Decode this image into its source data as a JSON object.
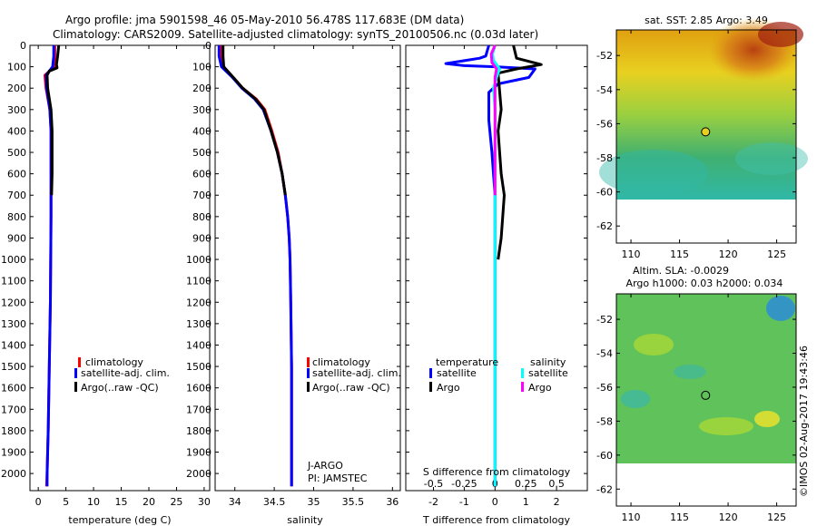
{
  "title": {
    "line1": "Argo profile: jma 5901598_46 05-May-2010 56.478S 117.683E (DM data)",
    "line2": "Climatology: CARS2009. Satellite-adjusted climatology: synTS_20100506.nc (0.03d later)"
  },
  "chart_data": [
    {
      "type": "line",
      "id": "temperature",
      "xlabel": "temperature (deg C)",
      "xlim": [
        -1.5,
        31
      ],
      "xticks": [
        0,
        5,
        10,
        15,
        20,
        25,
        30
      ],
      "ylim": [
        0,
        2080
      ],
      "yticks": [
        0,
        100,
        200,
        300,
        400,
        500,
        600,
        700,
        800,
        900,
        1000,
        1100,
        1200,
        1300,
        1400,
        1500,
        1600,
        1700,
        1800,
        1900,
        2000
      ],
      "legend": [
        "climatology",
        "satellite-adj. clim.",
        "Argo(..raw -QC)"
      ],
      "series": [
        {
          "name": "climatology",
          "color": "#ff0000",
          "points": [
            [
              3,
              0
            ],
            [
              3,
              50
            ],
            [
              2.9,
              100
            ],
            [
              1.2,
              140
            ],
            [
              1.4,
              200
            ],
            [
              2.1,
              300
            ],
            [
              2.3,
              400
            ],
            [
              2.3,
              800
            ],
            [
              2.2,
              1200
            ],
            [
              2,
              1500
            ],
            [
              1.8,
              1800
            ],
            [
              1.6,
              2000
            ],
            [
              1.5,
              2060
            ]
          ]
        },
        {
          "name": "satellite-adj. clim.",
          "color": "#0000ff",
          "points": [
            [
              2.8,
              0
            ],
            [
              2.8,
              50
            ],
            [
              2.6,
              100
            ],
            [
              1.4,
              140
            ],
            [
              1.5,
              200
            ],
            [
              2.1,
              300
            ],
            [
              2.3,
              400
            ],
            [
              2.3,
              800
            ],
            [
              2.2,
              1200
            ],
            [
              2,
              1500
            ],
            [
              1.8,
              1800
            ],
            [
              1.6,
              2000
            ],
            [
              1.6,
              2060
            ]
          ]
        },
        {
          "name": "Argo(..raw -QC)",
          "color": "#000000",
          "points": [
            [
              3.7,
              0
            ],
            [
              3.5,
              50
            ],
            [
              3.3,
              90
            ],
            [
              3.4,
              105
            ],
            [
              2,
              120
            ],
            [
              1.6,
              140
            ],
            [
              1.7,
              200
            ],
            [
              2.3,
              300
            ],
            [
              2.5,
              400
            ],
            [
              2.5,
              600
            ],
            [
              2.4,
              700
            ]
          ]
        }
      ]
    },
    {
      "type": "line",
      "id": "salinity",
      "xlabel": "salinity",
      "xlim": [
        33.75,
        36.1
      ],
      "xticks": [
        34,
        34.5,
        35,
        35.5,
        36
      ],
      "ylim": [
        0,
        2080
      ],
      "legend": [
        "climatology",
        "satellite-adj. clim.",
        "Argo(..raw -QC)"
      ],
      "annotation": [
        "J-ARGO",
        "PI: JAMSTEC"
      ],
      "series": [
        {
          "name": "climatology",
          "color": "#ff0000",
          "points": [
            [
              33.82,
              0
            ],
            [
              33.82,
              50
            ],
            [
              33.85,
              100
            ],
            [
              33.98,
              150
            ],
            [
              34.1,
              200
            ],
            [
              34.27,
              250
            ],
            [
              34.38,
              300
            ],
            [
              34.47,
              400
            ],
            [
              34.55,
              500
            ],
            [
              34.6,
              600
            ],
            [
              34.64,
              700
            ],
            [
              34.67,
              800
            ],
            [
              34.69,
              900
            ],
            [
              34.7,
              1000
            ],
            [
              34.71,
              1200
            ],
            [
              34.72,
              1500
            ],
            [
              34.72,
              1800
            ],
            [
              34.72,
              2000
            ],
            [
              34.72,
              2060
            ]
          ]
        },
        {
          "name": "satellite-adj. clim.",
          "color": "#0000ff",
          "points": [
            [
              33.8,
              0
            ],
            [
              33.8,
              50
            ],
            [
              33.83,
              100
            ],
            [
              33.97,
              150
            ],
            [
              34.09,
              200
            ],
            [
              34.25,
              250
            ],
            [
              34.36,
              300
            ],
            [
              34.46,
              400
            ],
            [
              34.54,
              500
            ],
            [
              34.6,
              600
            ],
            [
              34.64,
              700
            ],
            [
              34.67,
              800
            ],
            [
              34.69,
              900
            ],
            [
              34.7,
              1000
            ],
            [
              34.71,
              1200
            ],
            [
              34.72,
              1500
            ],
            [
              34.72,
              1800
            ],
            [
              34.72,
              2000
            ],
            [
              34.72,
              2060
            ]
          ]
        },
        {
          "name": "Argo(..raw -QC)",
          "color": "#000000",
          "points": [
            [
              33.85,
              0
            ],
            [
              33.85,
              50
            ],
            [
              33.86,
              100
            ],
            [
              33.98,
              150
            ],
            [
              34.1,
              200
            ],
            [
              34.26,
              250
            ],
            [
              34.37,
              300
            ],
            [
              34.46,
              400
            ],
            [
              34.54,
              500
            ],
            [
              34.6,
              600
            ],
            [
              34.64,
              700
            ]
          ]
        }
      ]
    },
    {
      "type": "line",
      "id": "difference",
      "xlabel": "T difference from climatology",
      "xlabel_top": "S difference from climatology",
      "xlim": [
        -2.9,
        3
      ],
      "xticks": [
        -2,
        -1,
        0,
        1,
        2
      ],
      "xticks_s": [
        "-0.5",
        "-0.25",
        "0",
        "0.25",
        "0.5"
      ],
      "ylim": [
        0,
        2080
      ],
      "legend_t": {
        "header": "temperature",
        "items": [
          "satellite",
          "Argo"
        ]
      },
      "legend_s": {
        "header": "salinity",
        "items": [
          "satellite",
          "Argo"
        ]
      },
      "series": [
        {
          "name": "T satellite",
          "color": "#0000ff",
          "points": [
            [
              -0.2,
              0
            ],
            [
              -0.3,
              50
            ],
            [
              -0.5,
              60
            ],
            [
              -1.6,
              85
            ],
            [
              -1,
              95
            ],
            [
              0,
              100
            ],
            [
              1.3,
              110
            ],
            [
              1.1,
              150
            ],
            [
              0.1,
              180
            ],
            [
              -0.2,
              220
            ],
            [
              -0.2,
              350
            ],
            [
              -0.1,
              500
            ],
            [
              0,
              700
            ],
            [
              0,
              1000
            ],
            [
              0,
              1500
            ],
            [
              0,
              2060
            ]
          ]
        },
        {
          "name": "T Argo",
          "color": "#000000",
          "points": [
            [
              0.6,
              0
            ],
            [
              0.7,
              60
            ],
            [
              1.5,
              90
            ],
            [
              0.7,
              110
            ],
            [
              0.1,
              130
            ],
            [
              0.2,
              300
            ],
            [
              0.1,
              400
            ],
            [
              0.2,
              600
            ],
            [
              0.3,
              700
            ],
            [
              0.2,
              900
            ],
            [
              0.1,
              1000
            ]
          ]
        },
        {
          "name": "S satellite",
          "color": "#00ffff",
          "points": [
            [
              0,
              0
            ],
            [
              -0.08,
              40
            ],
            [
              -0.05,
              70
            ],
            [
              0.15,
              110
            ],
            [
              0.05,
              150
            ],
            [
              -0.05,
              200
            ],
            [
              0,
              300
            ],
            [
              0,
              700
            ],
            [
              0,
              1000
            ],
            [
              0,
              1500
            ],
            [
              0,
              2060
            ]
          ]
        },
        {
          "name": "S Argo",
          "color": "#ff00ff",
          "points": [
            [
              0,
              0
            ],
            [
              -0.12,
              40
            ],
            [
              -0.1,
              80
            ],
            [
              0.05,
              110
            ],
            [
              0,
              150
            ],
            [
              0,
              300
            ],
            [
              0,
              700
            ]
          ]
        }
      ]
    },
    {
      "type": "heatmap",
      "id": "sst-map",
      "title": "sat. SST: 2.85 Argo: 3.49",
      "xlim": [
        108.5,
        127
      ],
      "ylim": [
        -63,
        -50.5
      ],
      "xticks": [
        110,
        115,
        120,
        125
      ],
      "yticks": [
        -52,
        -54,
        -56,
        -58,
        -60,
        -62
      ],
      "marker": [
        117.683,
        -56.478
      ]
    },
    {
      "type": "heatmap",
      "id": "sla-map",
      "title_line1": "Altim. SLA: -0.0029",
      "title_line2": "Argo h1000: 0.03 h2000: 0.034",
      "xlim": [
        108.5,
        127
      ],
      "ylim": [
        -63,
        -50.5
      ],
      "xticks": [
        110,
        115,
        120,
        125
      ],
      "yticks": [
        -52,
        -54,
        -56,
        -58,
        -60,
        -62
      ],
      "marker": [
        117.683,
        -56.478
      ]
    }
  ],
  "footer": "©IMOS 02-Aug-2017 19:43:46"
}
